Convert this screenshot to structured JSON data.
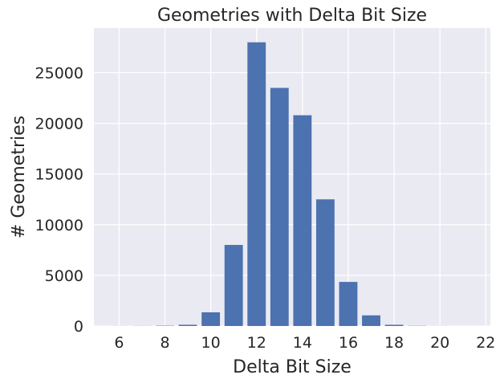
{
  "chart_data": {
    "type": "bar",
    "title": "Geometries with Delta Bit Size",
    "xlabel": "Delta Bit Size",
    "ylabel": "# Geometries",
    "x": [
      6,
      7,
      8,
      9,
      10,
      11,
      12,
      13,
      14,
      15,
      16,
      17,
      18,
      19,
      20,
      21
    ],
    "values": [
      5,
      10,
      30,
      120,
      1350,
      8000,
      28000,
      23500,
      20800,
      12500,
      4350,
      1050,
      120,
      20,
      5,
      2
    ],
    "xlim": [
      4.9,
      22.2
    ],
    "ylim": [
      0,
      29400
    ],
    "xticks": [
      6,
      8,
      10,
      12,
      14,
      16,
      18,
      20,
      22
    ],
    "yticks": [
      0,
      5000,
      10000,
      15000,
      20000,
      25000
    ],
    "grid": true,
    "colors": {
      "bar": "#4c72b0",
      "background": "#eaeaf2",
      "grid": "#ffffff"
    }
  }
}
